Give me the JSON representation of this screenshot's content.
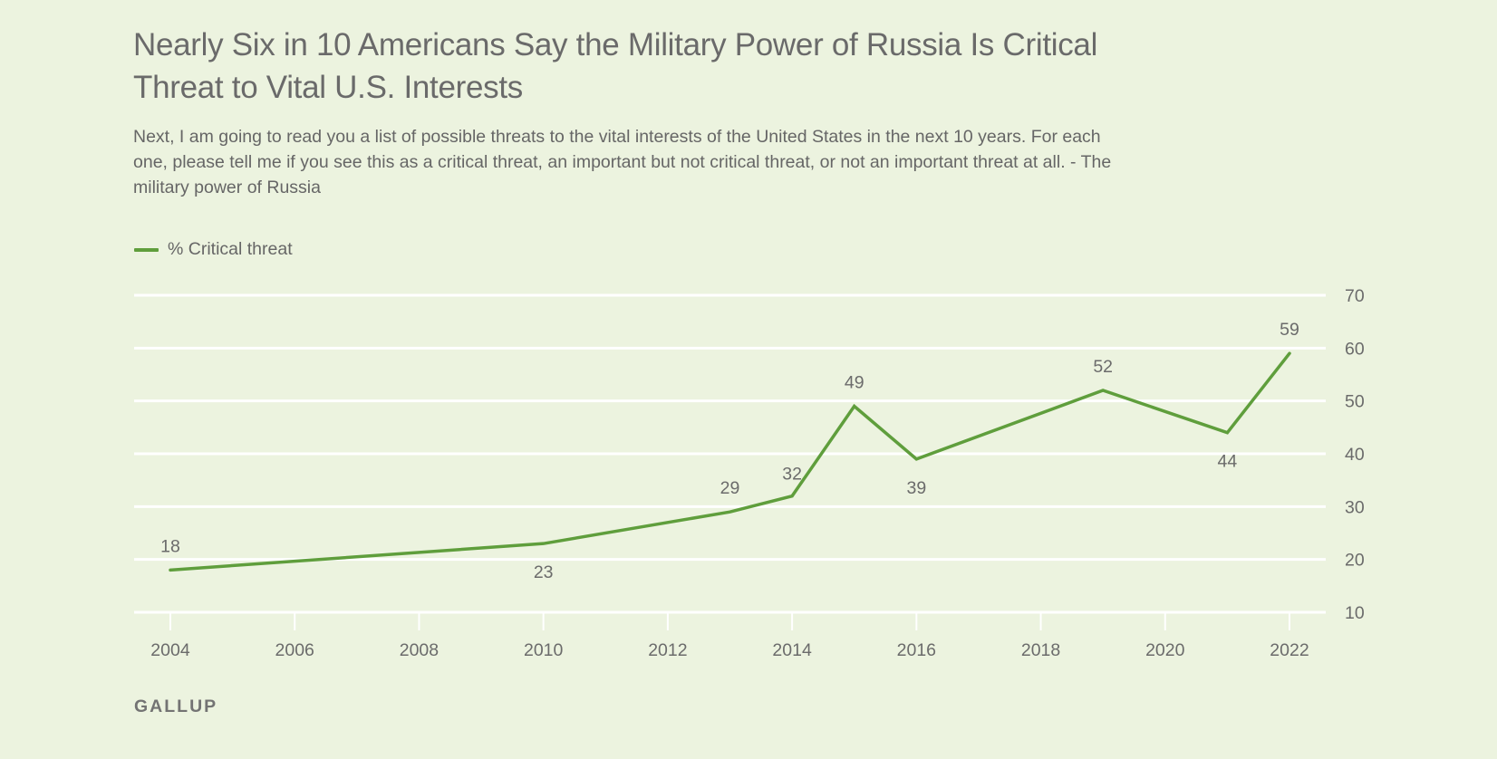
{
  "header": {
    "title": "Nearly Six in 10 Americans Say the Military Power of Russia Is Critical Threat to Vital U.S. Interests",
    "subtitle": "Next, I am going to read you a list of possible threats to the vital interests of the United States in the next 10 years. For each one, please tell me if you see this as a critical threat, an important but not critical threat, or not an important threat at all. - The military power of Russia"
  },
  "footer": {
    "source": "GALLUP"
  },
  "colors": {
    "background": "#ecf3df",
    "line": "#5f9e3c",
    "gridline": "#ffffff",
    "text": "#6b6b6b"
  },
  "chart_data": {
    "type": "line",
    "title": "Nearly Six in 10 Americans Say the Military Power of Russia Is Critical Threat to Vital U.S. Interests",
    "xlabel": "",
    "ylabel": "",
    "legend": {
      "position": "top-left",
      "entries": [
        "% Critical threat"
      ]
    },
    "grid": true,
    "xlim": [
      2004,
      2022
    ],
    "ylim": [
      10,
      70
    ],
    "x_ticks": [
      2004,
      2006,
      2008,
      2010,
      2012,
      2014,
      2016,
      2018,
      2020,
      2022
    ],
    "y_ticks": [
      10,
      20,
      30,
      40,
      50,
      60,
      70
    ],
    "y_axis_side": "right",
    "series": [
      {
        "name": "% Critical threat",
        "x": [
          2004,
          2010,
          2013,
          2014,
          2015,
          2016,
          2019,
          2021,
          2022
        ],
        "values": [
          18,
          23,
          29,
          32,
          49,
          39,
          52,
          44,
          59
        ],
        "label_positions": [
          "above",
          "below",
          "above",
          "above",
          "above",
          "below",
          "above",
          "below",
          "above"
        ]
      }
    ]
  }
}
